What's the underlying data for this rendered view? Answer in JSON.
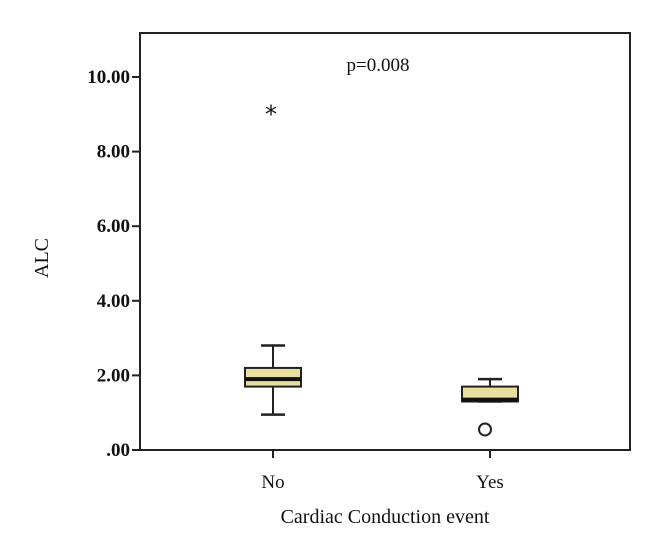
{
  "chart_data": {
    "type": "boxplot",
    "title": "",
    "xlabel": "Cardiac Conduction event",
    "ylabel": "ALC",
    "ylim": [
      0,
      11.0
    ],
    "yticks": [
      0,
      2,
      4,
      6,
      8,
      10
    ],
    "ytick_labels": [
      ".00",
      "2.00",
      "4.00",
      "6.00",
      "8.00",
      "10.00"
    ],
    "categories": [
      "No",
      "Yes"
    ],
    "annotation": "p=0.008",
    "colors": {
      "box_fill": "#e8e0a0",
      "stroke": "#222222"
    },
    "boxes": [
      {
        "category": "No",
        "whisker_low": 0.95,
        "q1": 1.7,
        "median": 1.9,
        "q3": 2.2,
        "whisker_high": 2.8,
        "outliers": [],
        "extremes": [
          {
            "value": 9.1,
            "marker": "*"
          }
        ]
      },
      {
        "category": "Yes",
        "whisker_low": 1.3,
        "q1": 1.3,
        "median": 1.35,
        "q3": 1.7,
        "whisker_high": 1.9,
        "outliers": [
          {
            "value": 0.55,
            "marker": "o"
          }
        ],
        "extremes": []
      }
    ]
  }
}
